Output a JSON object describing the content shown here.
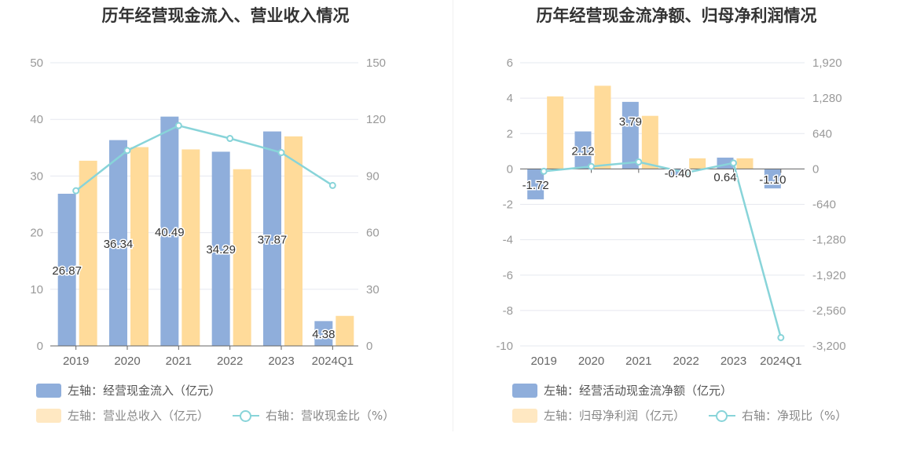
{
  "colors": {
    "blue": "#8faedb",
    "orange": "#ffdb9a",
    "line": "#88d4d9",
    "grid": "#e6e8ef",
    "axis": "#666666"
  },
  "chart_data": [
    {
      "type": "bar",
      "title": "历年经营现金流入、营业收入情况",
      "categories": [
        "2019",
        "2020",
        "2021",
        "2022",
        "2023",
        "2024Q1"
      ],
      "left_axis": {
        "ticks": [
          "0",
          "10",
          "20",
          "30",
          "40",
          "50"
        ],
        "min": 0,
        "max": 50
      },
      "right_axis": {
        "ticks": [
          "0",
          "30",
          "60",
          "90",
          "120",
          "150"
        ],
        "min": 0,
        "max": 150
      },
      "series": [
        {
          "name": "左轴：经营现金流入（亿元）",
          "axis": "left",
          "kind": "bar",
          "color": "#8faedb",
          "values": [
            26.87,
            36.34,
            40.49,
            34.29,
            37.87,
            4.38
          ],
          "labels": [
            "26.87",
            "36.34",
            "40.49",
            "34.29",
            "37.87",
            "4.38"
          ]
        },
        {
          "name": "左轴：营业总收入（亿元）",
          "axis": "left",
          "kind": "bar",
          "color": "#ffdb9a",
          "values": [
            32.7,
            35.1,
            34.7,
            31.2,
            37.0,
            5.3
          ]
        },
        {
          "name": "右轴：营收现金比（%）",
          "axis": "right",
          "kind": "line",
          "color": "#88d4d9",
          "values": [
            82.2,
            103.5,
            116.7,
            109.9,
            102.4,
            85.0
          ]
        }
      ],
      "grid": true,
      "legend_position": "bottom-left"
    },
    {
      "type": "bar",
      "title": "历年经营现金流净额、归母净利润情况",
      "categories": [
        "2019",
        "2020",
        "2021",
        "2022",
        "2023",
        "2024Q1"
      ],
      "left_axis": {
        "ticks": [
          "-10",
          "-8",
          "-6",
          "-4",
          "-2",
          "0",
          "2",
          "4",
          "6"
        ],
        "min": -10,
        "max": 6
      },
      "right_axis": {
        "ticks": [
          "-3,200",
          "-2,560",
          "-1,920",
          "-1,280",
          "-640",
          "0",
          "640",
          "1,280",
          "1,920"
        ],
        "min": -3200,
        "max": 1920
      },
      "series": [
        {
          "name": "左轴：经营活动现金流净额（亿元）",
          "axis": "left",
          "kind": "bar",
          "color": "#8faedb",
          "values": [
            -1.72,
            2.12,
            3.79,
            -0.4,
            0.64,
            -1.1
          ],
          "labels": [
            "-1.72",
            "2.12",
            "3.79",
            "-0.40",
            "0.64",
            "-1.10"
          ]
        },
        {
          "name": "左轴：归母净利润（亿元）",
          "axis": "left",
          "kind": "bar",
          "color": "#ffdb9a",
          "values": [
            4.1,
            4.7,
            3.0,
            0.6,
            0.6,
            0.0
          ]
        },
        {
          "name": "右轴：净现比（%）",
          "axis": "right",
          "kind": "line",
          "color": "#88d4d9",
          "values": [
            -42,
            45,
            126,
            -67,
            107,
            -3050
          ]
        }
      ],
      "grid": true,
      "legend_position": "bottom-left"
    }
  ]
}
